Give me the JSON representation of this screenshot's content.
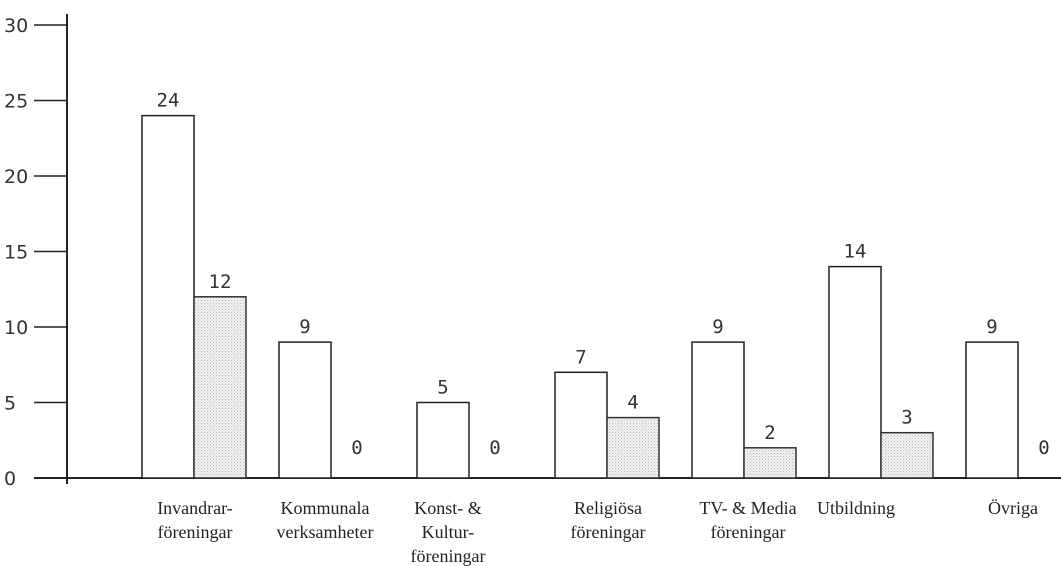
{
  "chart_data": {
    "type": "bar",
    "title": "",
    "xlabel": "",
    "ylabel": "",
    "ylim": [
      0,
      30
    ],
    "yticks": [
      0,
      5,
      10,
      15,
      20,
      25,
      30
    ],
    "grid": false,
    "legend": "none",
    "categories": [
      [
        "Invandrar-",
        "föreningar"
      ],
      [
        "Kommunala",
        "verksamheter"
      ],
      [
        "Konst- &",
        "Kultur-",
        "föreningar"
      ],
      [
        "Religiösa",
        "föreningar"
      ],
      [
        "TV- & Media",
        "föreningar"
      ],
      [
        "Utbildning"
      ],
      [
        "Övriga"
      ]
    ],
    "series": [
      {
        "values": [
          24,
          9,
          5,
          7,
          9,
          14,
          9
        ],
        "fill": "#ffffff"
      },
      {
        "values": [
          12,
          0,
          0,
          4,
          2,
          3,
          0
        ],
        "fill": "#e4e4e4"
      }
    ]
  }
}
